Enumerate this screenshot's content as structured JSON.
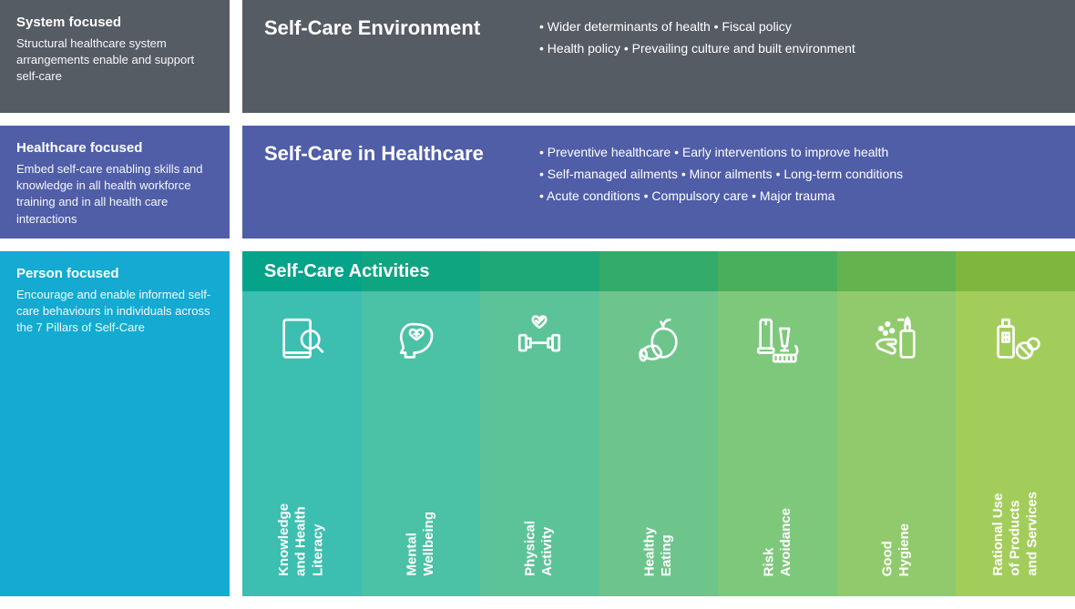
{
  "rows": [
    {
      "sidebar": {
        "title": "System focused",
        "text": "Structural healthcare system arrangements enable and support self-care",
        "bg": "#565c64"
      },
      "main": {
        "title": "Self-Care Environment",
        "bullets": "• Wider determinants of health • Fiscal policy\n• Health policy • Prevailing culture and built environment",
        "bg": "#565c64"
      }
    },
    {
      "sidebar": {
        "title": "Healthcare focused",
        "text": "Embed self-care enabling skills and knowledge in all health workforce training and in all health care interactions",
        "bg": "#505ea8"
      },
      "main": {
        "title": "Self-Care in Healthcare",
        "bullets": "• Preventive healthcare • Early interventions to improve health\n• Self-managed ailments • Minor ailments • Long-term conditions\n• Acute conditions • Compulsory care • Major trauma",
        "bg": "#505ea8"
      }
    },
    {
      "sidebar": {
        "title": "Person focused",
        "text": "Encourage and enable informed self-care behaviours in individuals across the 7 Pillars of Self-Care",
        "bg": "#14aad1"
      },
      "pillars": {
        "title": "Self-Care Activities",
        "header_colors": [
          "#05a389",
          "#10a581",
          "#1fa877",
          "#33ab6b",
          "#4aaf5d",
          "#63b34e",
          "#7fb73e"
        ],
        "body_colors": [
          "#3cbfb0",
          "#4bc1a5",
          "#5cc399",
          "#6dc58b",
          "#7ec87c",
          "#90ca6c",
          "#a2cd5b"
        ],
        "items": [
          {
            "label": "Knowledge\nand Health\nLiteracy",
            "icon": "knowledge"
          },
          {
            "label": "Mental\nWellbeing",
            "icon": "mental"
          },
          {
            "label": "Physical\nActivity",
            "icon": "physical"
          },
          {
            "label": "Healthy\nEating",
            "icon": "eating"
          },
          {
            "label": "Risk\nAvoidance",
            "icon": "risk"
          },
          {
            "label": "Good\nHygiene",
            "icon": "hygiene"
          },
          {
            "label": "Rational Use\nof Products\nand Services",
            "icon": "products"
          }
        ]
      }
    }
  ],
  "typography": {
    "sidebar_title_size": 15,
    "sidebar_text_size": 13,
    "main_title_size": 22,
    "main_bullets_size": 14,
    "pillar_label_size": 15
  }
}
